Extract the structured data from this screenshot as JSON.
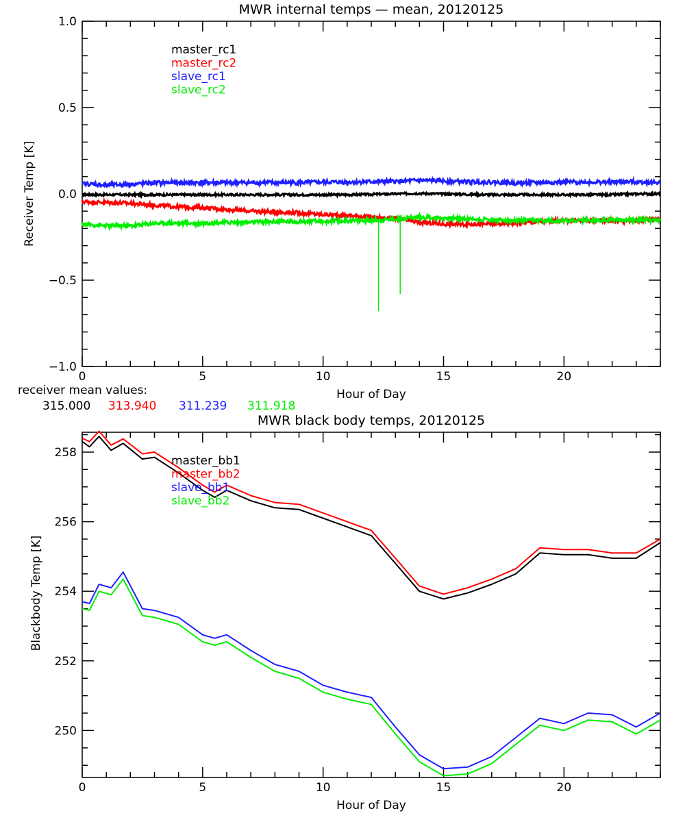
{
  "chart_data": [
    {
      "type": "line",
      "title": "MWR internal temps — mean, 20120125",
      "xlabel": "Hour of Day",
      "ylabel": "Receiver Temp [K]",
      "xlim": [
        0,
        24
      ],
      "ylim": [
        -1.0,
        1.0
      ],
      "xticks": [
        0,
        5,
        10,
        15,
        20
      ],
      "xtick_labels": [
        "0",
        "5",
        "10",
        "15",
        "20"
      ],
      "yticks": [
        -1.0,
        -0.5,
        0.0,
        0.5,
        1.0
      ],
      "ytick_labels": [
        "−1.0",
        "−0.5",
        "0.0",
        "0.5",
        "1.0"
      ],
      "grid": false,
      "legend_position": "top-left-inside",
      "x": [
        0,
        1,
        2,
        3,
        4,
        5,
        6,
        7,
        8,
        9,
        10,
        11,
        12,
        13,
        14,
        15,
        16,
        17,
        18,
        19,
        20,
        21,
        22,
        23,
        24
      ],
      "series": [
        {
          "name": "master_rc1",
          "color": "#000000",
          "values": [
            -0.005,
            -0.005,
            -0.005,
            -0.005,
            -0.005,
            -0.005,
            -0.005,
            -0.005,
            -0.005,
            -0.005,
            -0.005,
            -0.005,
            -0.003,
            0.0,
            0.003,
            0.0,
            -0.003,
            -0.005,
            -0.005,
            -0.005,
            -0.005,
            -0.005,
            -0.005,
            0.0,
            0.0
          ]
        },
        {
          "name": "master_rc2",
          "color": "#ff0000",
          "values": [
            -0.045,
            -0.05,
            -0.055,
            -0.065,
            -0.075,
            -0.08,
            -0.09,
            -0.1,
            -0.105,
            -0.11,
            -0.12,
            -0.125,
            -0.135,
            -0.145,
            -0.165,
            -0.175,
            -0.175,
            -0.175,
            -0.17,
            -0.16,
            -0.155,
            -0.155,
            -0.155,
            -0.155,
            -0.14
          ]
        },
        {
          "name": "slave_rc1",
          "color": "#2020ff",
          "values": [
            0.06,
            0.05,
            0.055,
            0.065,
            0.065,
            0.065,
            0.065,
            0.065,
            0.065,
            0.065,
            0.068,
            0.068,
            0.07,
            0.072,
            0.078,
            0.075,
            0.07,
            0.068,
            0.062,
            0.065,
            0.068,
            0.068,
            0.068,
            0.07,
            0.065
          ]
        },
        {
          "name": "slave_rc2",
          "color": "#00ee00",
          "values": [
            -0.175,
            -0.185,
            -0.185,
            -0.17,
            -0.17,
            -0.17,
            -0.165,
            -0.165,
            -0.16,
            -0.16,
            -0.16,
            -0.155,
            -0.155,
            -0.145,
            -0.135,
            -0.14,
            -0.145,
            -0.15,
            -0.155,
            -0.155,
            -0.155,
            -0.155,
            -0.15,
            -0.15,
            -0.155
          ],
          "spikes": [
            {
              "x": 12.3,
              "y": -0.68
            },
            {
              "x": 13.2,
              "y": -0.58
            }
          ]
        }
      ],
      "annotation": {
        "label": "receiver mean values:",
        "values": [
          {
            "text": "315.000",
            "color": "#000000"
          },
          {
            "text": "313.940",
            "color": "#ff0000"
          },
          {
            "text": "311.239",
            "color": "#2020ff"
          },
          {
            "text": "311.918",
            "color": "#00ee00"
          }
        ]
      }
    },
    {
      "type": "line",
      "title": "MWR black body temps, 20120125",
      "xlabel": "Hour of Day",
      "ylabel": "Blackbody Temp [K]",
      "xlim": [
        0,
        24
      ],
      "ylim": [
        248.65,
        258.57
      ],
      "xticks": [
        0,
        5,
        10,
        15,
        20
      ],
      "xtick_labels": [
        "0",
        "5",
        "10",
        "15",
        "20"
      ],
      "yticks": [
        250,
        252,
        254,
        256,
        258
      ],
      "ytick_labels": [
        "250",
        "252",
        "254",
        "256",
        "258"
      ],
      "grid": false,
      "legend_position": "top-left-inside",
      "x": [
        0,
        0.3,
        0.7,
        1.2,
        1.7,
        2.5,
        3,
        4,
        5,
        5.5,
        6,
        7,
        8,
        9,
        10,
        11,
        12,
        13,
        14,
        15,
        16,
        17,
        18,
        19,
        20,
        21,
        22,
        23,
        24
      ],
      "series": [
        {
          "name": "master_bb1",
          "color": "#000000",
          "values": [
            258.3,
            258.15,
            258.45,
            258.05,
            258.25,
            257.8,
            257.85,
            257.4,
            256.9,
            256.7,
            256.9,
            256.6,
            256.4,
            256.35,
            256.1,
            255.85,
            255.6,
            254.8,
            254.0,
            253.78,
            253.95,
            254.2,
            254.5,
            255.1,
            255.05,
            255.05,
            254.95,
            254.95,
            255.4
          ]
        },
        {
          "name": "master_bb2",
          "color": "#ff0000",
          "values": [
            258.4,
            258.3,
            258.6,
            258.2,
            258.38,
            257.95,
            258.0,
            257.55,
            257.05,
            256.85,
            257.05,
            256.75,
            256.55,
            256.5,
            256.25,
            256.0,
            255.75,
            254.95,
            254.15,
            253.92,
            254.1,
            254.35,
            254.65,
            255.25,
            255.2,
            255.2,
            255.1,
            255.1,
            255.5
          ]
        },
        {
          "name": "slave_bb1",
          "color": "#2020ff",
          "values": [
            253.7,
            253.65,
            254.2,
            254.1,
            254.55,
            253.5,
            253.45,
            253.25,
            252.75,
            252.65,
            252.75,
            252.3,
            251.9,
            251.7,
            251.3,
            251.1,
            250.95,
            250.1,
            249.3,
            248.9,
            248.95,
            249.25,
            249.8,
            250.35,
            250.2,
            250.5,
            250.45,
            250.1,
            250.5
          ]
        },
        {
          "name": "slave_bb2",
          "color": "#00ee00",
          "values": [
            253.5,
            253.45,
            254.0,
            253.9,
            254.35,
            253.3,
            253.25,
            253.05,
            252.55,
            252.45,
            252.55,
            252.1,
            251.7,
            251.5,
            251.1,
            250.9,
            250.75,
            249.9,
            249.1,
            248.7,
            248.75,
            249.05,
            249.6,
            250.15,
            250.0,
            250.3,
            250.25,
            249.9,
            250.3
          ]
        }
      ]
    }
  ]
}
